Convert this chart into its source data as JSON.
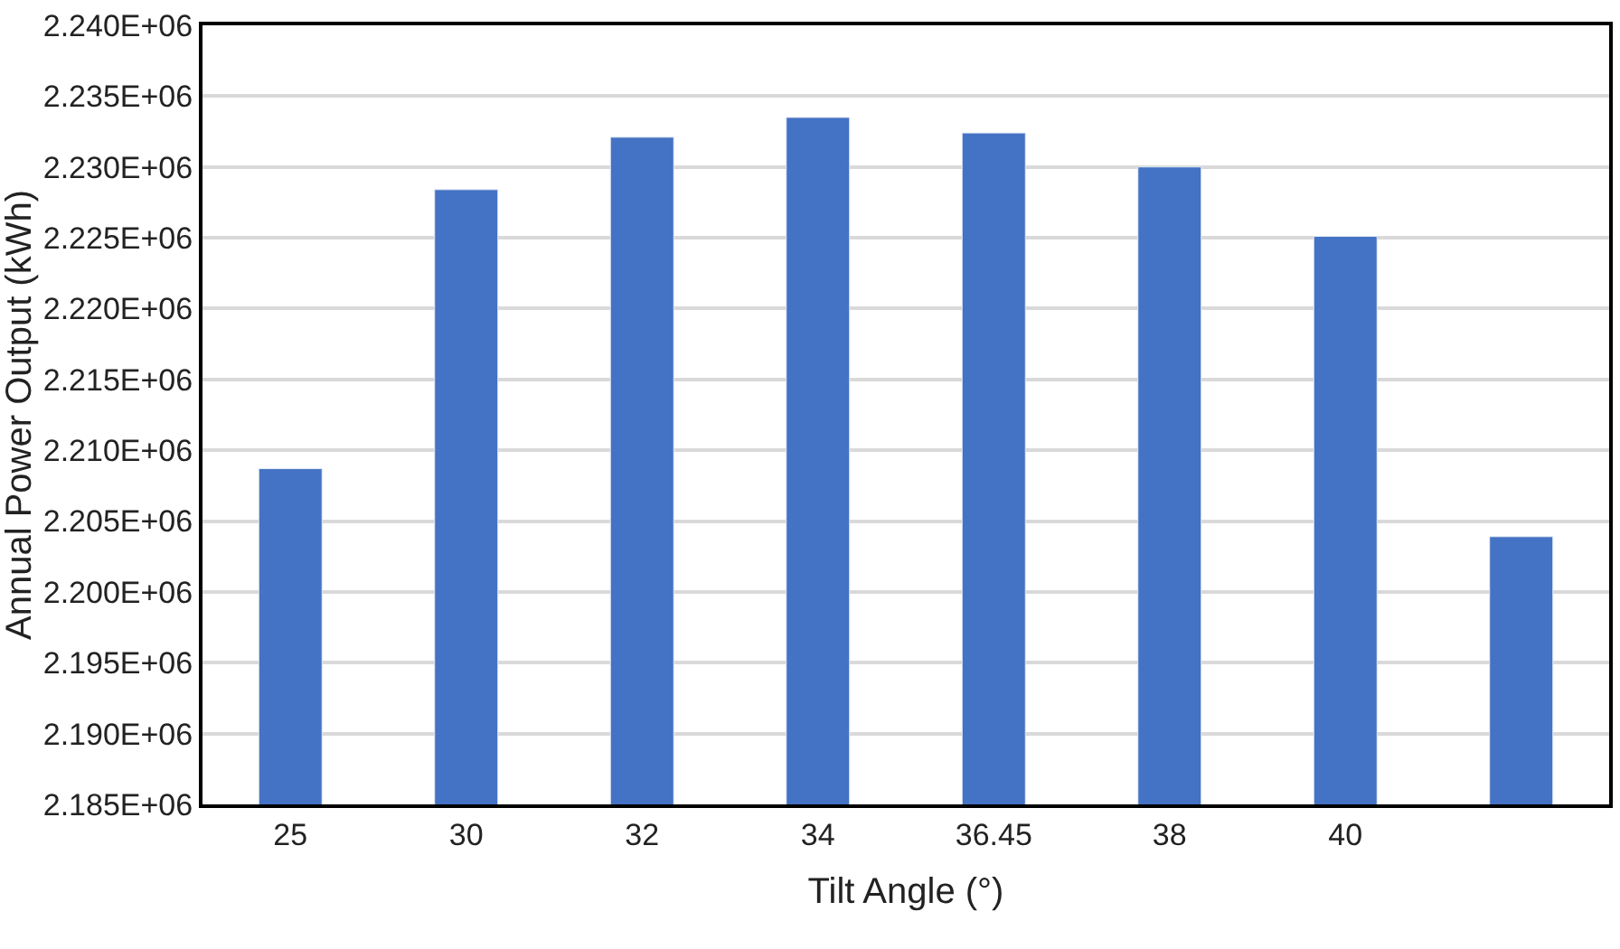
{
  "chart_data": {
    "type": "bar",
    "xlabel": "Tilt Angle (°)",
    "ylabel": "Annual Power Output (kWh)",
    "categories": [
      "25",
      "30",
      "32",
      "34",
      "36.45",
      "38",
      "40",
      null
    ],
    "values": [
      2208700,
      2228400,
      2232100,
      2233500,
      2232400,
      2230000,
      2225100,
      2203900
    ],
    "color": "#4472c4",
    "ylim": [
      2185000,
      2240000
    ],
    "yticks": [
      {
        "value": 2185000,
        "label": "2.185E+06"
      },
      {
        "value": 2190000,
        "label": "2.190E+06"
      },
      {
        "value": 2195000,
        "label": "2.195E+06"
      },
      {
        "value": 2200000,
        "label": "2.200E+06"
      },
      {
        "value": 2205000,
        "label": "2.205E+06"
      },
      {
        "value": 2210000,
        "label": "2.210E+06"
      },
      {
        "value": 2215000,
        "label": "2.215E+06"
      },
      {
        "value": 2220000,
        "label": "2.220E+06"
      },
      {
        "value": 2225000,
        "label": "2.225E+06"
      },
      {
        "value": 2230000,
        "label": "2.230E+06"
      },
      {
        "value": 2235000,
        "label": "2.235E+06"
      },
      {
        "value": 2240000,
        "label": "2.240E+06"
      }
    ],
    "grid": "y",
    "legend": false
  }
}
